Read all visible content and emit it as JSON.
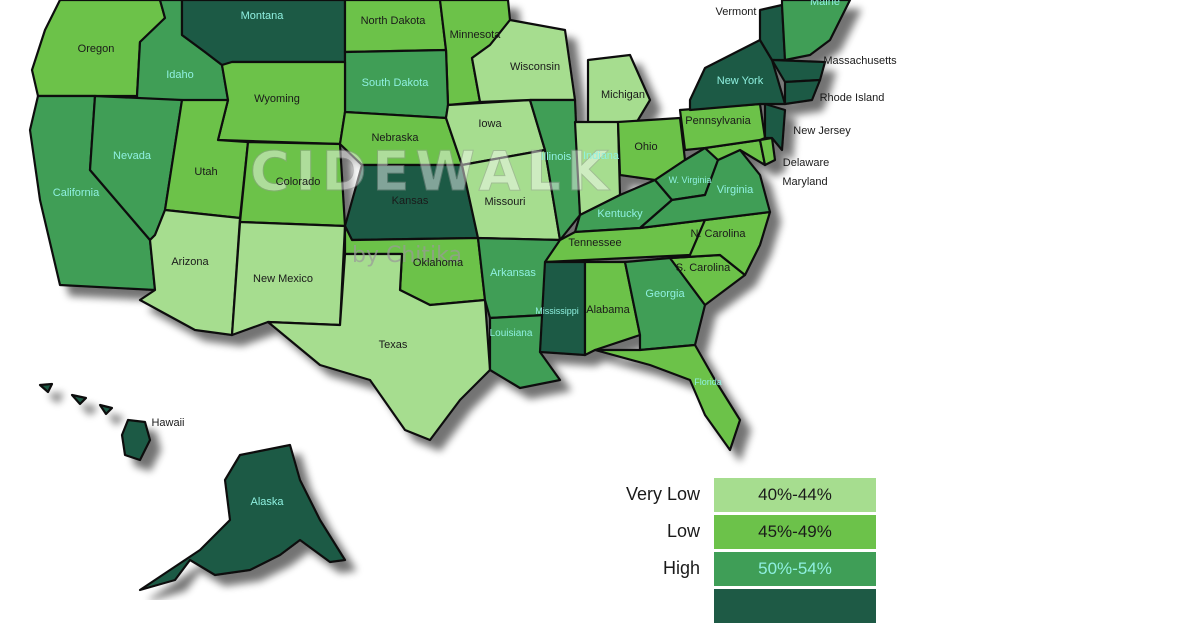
{
  "colors": {
    "very_low": "#a6dd8f",
    "low": "#6cc24a",
    "high": "#3f9e57",
    "very_high": "#1e5a45",
    "label_dark": "#1a1a1a",
    "label_light": "#8ff0e0"
  },
  "watermark": {
    "brand": "CIDEWALK",
    "sub": "by Chitika"
  },
  "states": [
    {
      "name": "Montana",
      "tier": "very_high"
    },
    {
      "name": "North Dakota",
      "tier": "low"
    },
    {
      "name": "Minnesota",
      "tier": "low"
    },
    {
      "name": "Vermont",
      "tier": "very_high"
    },
    {
      "name": "Maine",
      "tier": "high"
    },
    {
      "name": "Oregon",
      "tier": "low"
    },
    {
      "name": "Idaho",
      "tier": "high"
    },
    {
      "name": "South Dakota",
      "tier": "high"
    },
    {
      "name": "Wisconsin",
      "tier": "very_low"
    },
    {
      "name": "Michigan",
      "tier": "very_low"
    },
    {
      "name": "New York",
      "tier": "very_high"
    },
    {
      "name": "Massachusetts",
      "tier": "very_high"
    },
    {
      "name": "Wyoming",
      "tier": "low"
    },
    {
      "name": "Iowa",
      "tier": "very_low"
    },
    {
      "name": "Rhode Island",
      "tier": "very_high"
    },
    {
      "name": "Pennsylvania",
      "tier": "low"
    },
    {
      "name": "New Jersey",
      "tier": "very_high"
    },
    {
      "name": "Nebraska",
      "tier": "low"
    },
    {
      "name": "Illinois",
      "tier": "high"
    },
    {
      "name": "Indiana",
      "tier": "very_low"
    },
    {
      "name": "Ohio",
      "tier": "low"
    },
    {
      "name": "Nevada",
      "tier": "high"
    },
    {
      "name": "Utah",
      "tier": "low"
    },
    {
      "name": "Colorado",
      "tier": "low"
    },
    {
      "name": "California",
      "tier": "high"
    },
    {
      "name": "Kansas",
      "tier": "very_high"
    },
    {
      "name": "Missouri",
      "tier": "very_low"
    },
    {
      "name": "W. Virginia",
      "tier": "high"
    },
    {
      "name": "Virginia",
      "tier": "high"
    },
    {
      "name": "Delaware",
      "tier": "low"
    },
    {
      "name": "Maryland",
      "tier": "low"
    },
    {
      "name": "Kentucky",
      "tier": "high"
    },
    {
      "name": "Arizona",
      "tier": "very_low"
    },
    {
      "name": "New Mexico",
      "tier": "very_low"
    },
    {
      "name": "Oklahoma",
      "tier": "low"
    },
    {
      "name": "Tennessee",
      "tier": "low"
    },
    {
      "name": "N. Carolina",
      "tier": "low"
    },
    {
      "name": "Arkansas",
      "tier": "high"
    },
    {
      "name": "S. Carolina",
      "tier": "low"
    },
    {
      "name": "Mississippi",
      "tier": "very_high"
    },
    {
      "name": "Alabama",
      "tier": "low"
    },
    {
      "name": "Georgia",
      "tier": "high"
    },
    {
      "name": "Louisiana",
      "tier": "high"
    },
    {
      "name": "Texas",
      "tier": "very_low"
    },
    {
      "name": "Florida",
      "tier": "low"
    },
    {
      "name": "Hawaii",
      "tier": "very_high"
    },
    {
      "name": "Alaska",
      "tier": "very_high"
    }
  ],
  "legend": [
    {
      "label": "Very Low",
      "range": "40%-44%",
      "tier": "very_low"
    },
    {
      "label": "Low",
      "range": "45%-49%",
      "tier": "low"
    },
    {
      "label": "High",
      "range": "50%-54%",
      "tier": "high"
    },
    {
      "label": "",
      "range": "",
      "tier": "very_high"
    }
  ]
}
